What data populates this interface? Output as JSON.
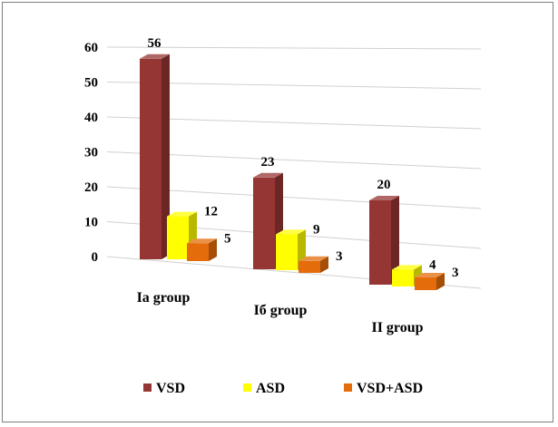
{
  "chart_data": {
    "type": "bar",
    "title": "",
    "xlabel": "",
    "ylabel": "",
    "ylim": [
      0,
      60
    ],
    "yticks": [
      "0",
      "10",
      "20",
      "30",
      "40",
      "50",
      "60"
    ],
    "categories": [
      "Ia group",
      "Iб group",
      "II group"
    ],
    "series": [
      {
        "name": "VSD",
        "values": [
          56,
          23,
          20
        ],
        "color": "#963634"
      },
      {
        "name": "ASD",
        "values": [
          12,
          9,
          4
        ],
        "color": "#FFFF00"
      },
      {
        "name": "VSD+ASD",
        "values": [
          5,
          3,
          3
        ],
        "color": "#E46C0A"
      }
    ],
    "grid": true,
    "legend": "bottom",
    "style": "3d-perspective"
  }
}
